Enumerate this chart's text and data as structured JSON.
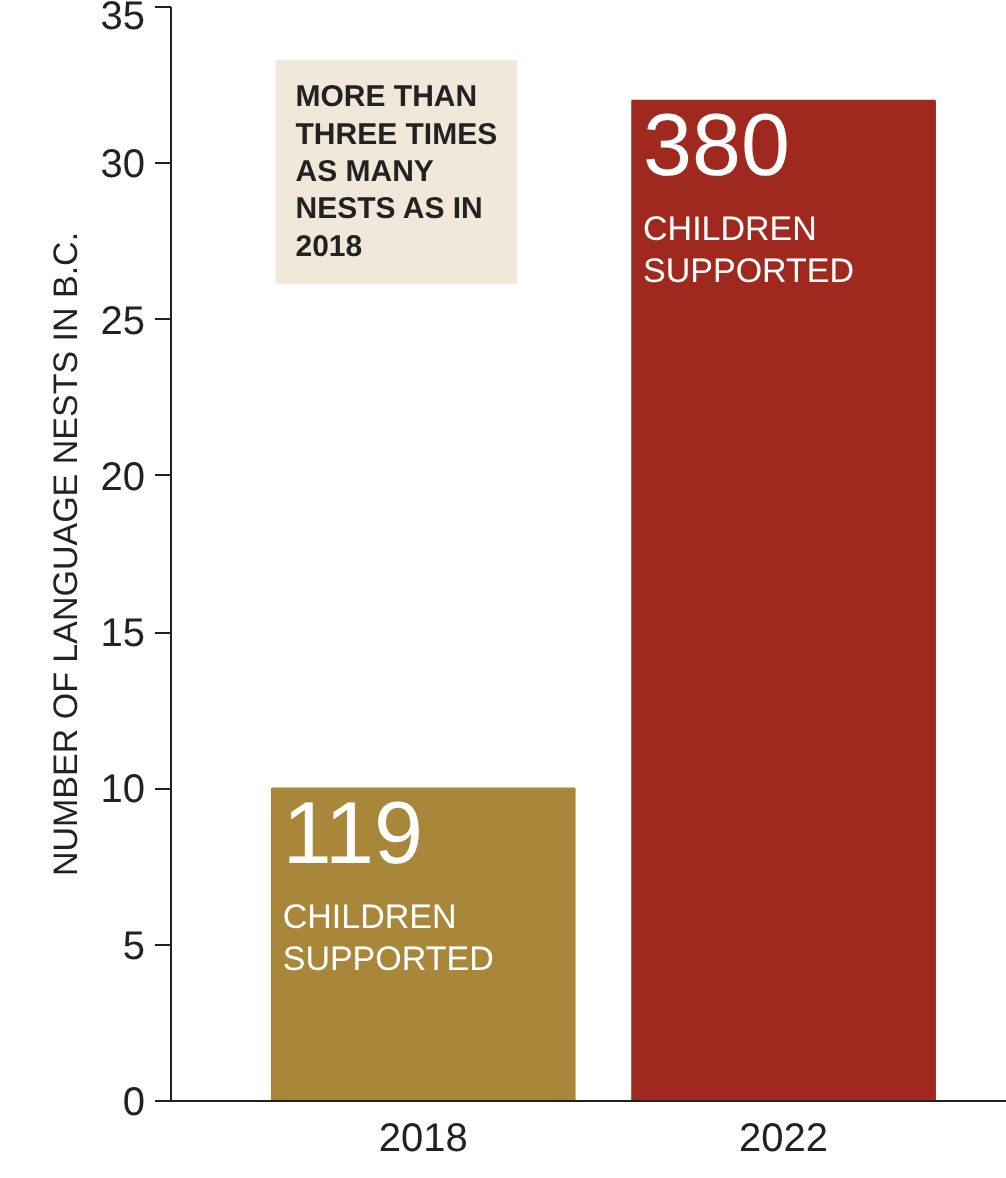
{
  "chart_data": {
    "type": "bar",
    "ylabel": "NUMBER OF LANGUAGE NESTS IN B.C.",
    "categories": [
      "2018",
      "2022"
    ],
    "values": [
      10,
      32
    ],
    "colors": [
      "#a8863a",
      "#a0291f"
    ],
    "ylim": [
      0,
      35
    ],
    "yticks": [
      0,
      5,
      10,
      15,
      20,
      25,
      30,
      35
    ],
    "grid": false,
    "annotations": [
      "MORE THAN\nTHREE TIMES\nAS MANY\nNESTS AS IN\n2018",
      "119",
      "CHILDREN\nSUPPORTED",
      "380",
      "CHILDREN\nSUPPORTED"
    ]
  }
}
